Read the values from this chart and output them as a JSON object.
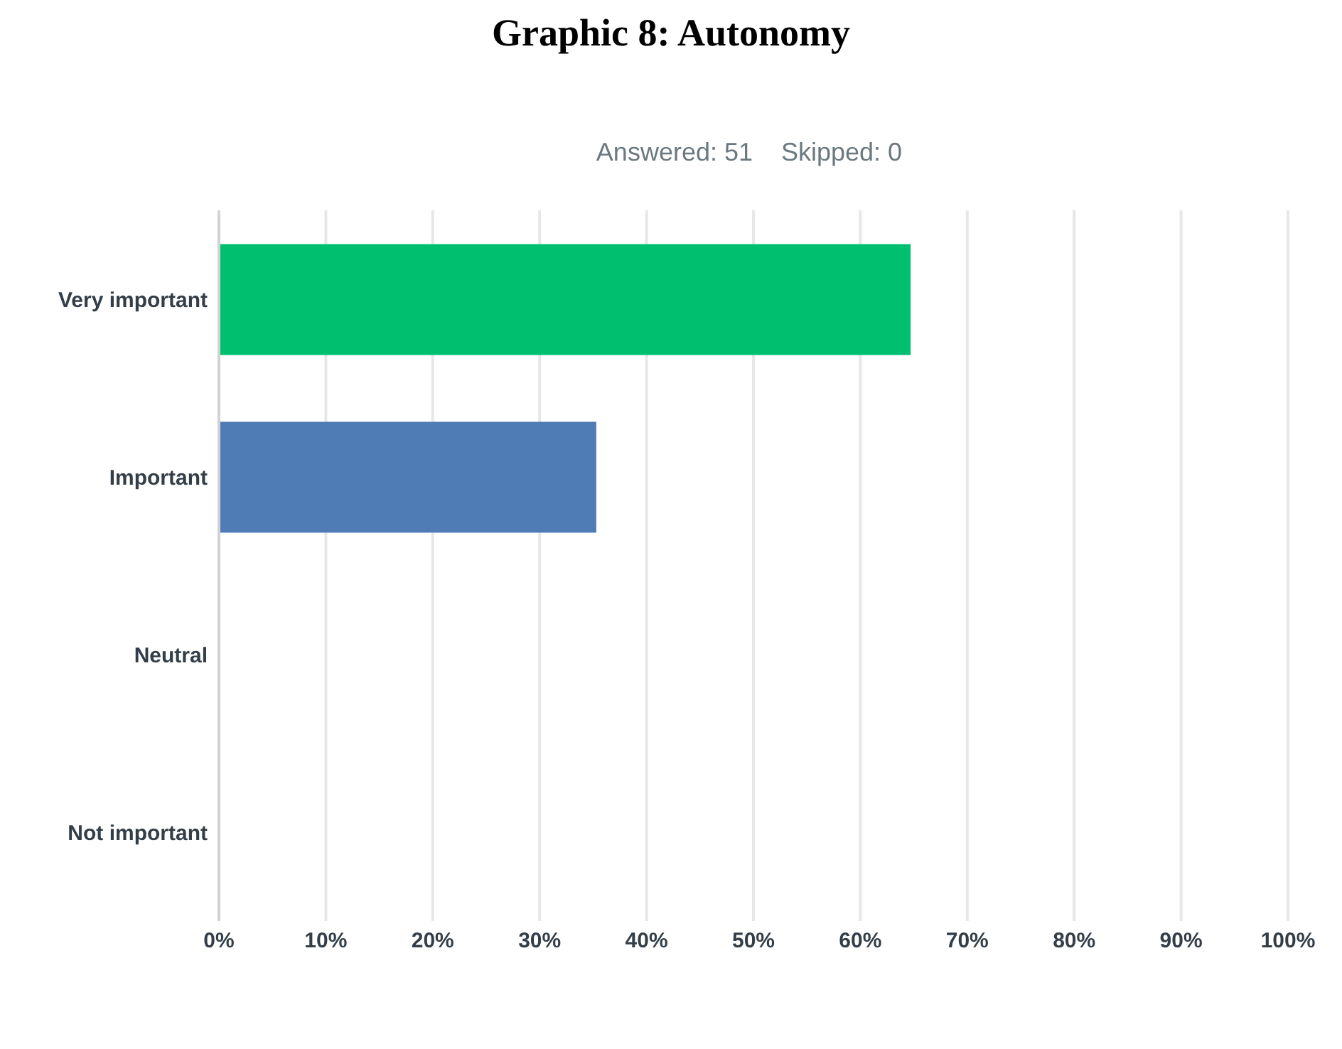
{
  "chart_data": {
    "type": "bar",
    "orientation": "horizontal",
    "title": "Graphic 8: Autonomy",
    "subtitle": "Answered: 51    Skipped: 0",
    "categories": [
      "Very important",
      "Important",
      "Neutral",
      "Not important"
    ],
    "values": [
      64.7,
      35.3,
      0,
      0
    ],
    "colors": [
      "#00bf6f",
      "#507cb6",
      "#507cb6",
      "#507cb6"
    ],
    "xlim": [
      0,
      100
    ],
    "xticks": [
      {
        "value": 0,
        "label": "0%"
      },
      {
        "value": 10,
        "label": "10%"
      },
      {
        "value": 20,
        "label": "20%"
      },
      {
        "value": 30,
        "label": "30%"
      },
      {
        "value": 40,
        "label": "40%"
      },
      {
        "value": 50,
        "label": "50%"
      },
      {
        "value": 60,
        "label": "60%"
      },
      {
        "value": 70,
        "label": "70%"
      },
      {
        "value": 80,
        "label": "80%"
      },
      {
        "value": 90,
        "label": "90%"
      },
      {
        "value": 100,
        "label": "100%"
      }
    ],
    "grid": "x",
    "legend": false
  }
}
